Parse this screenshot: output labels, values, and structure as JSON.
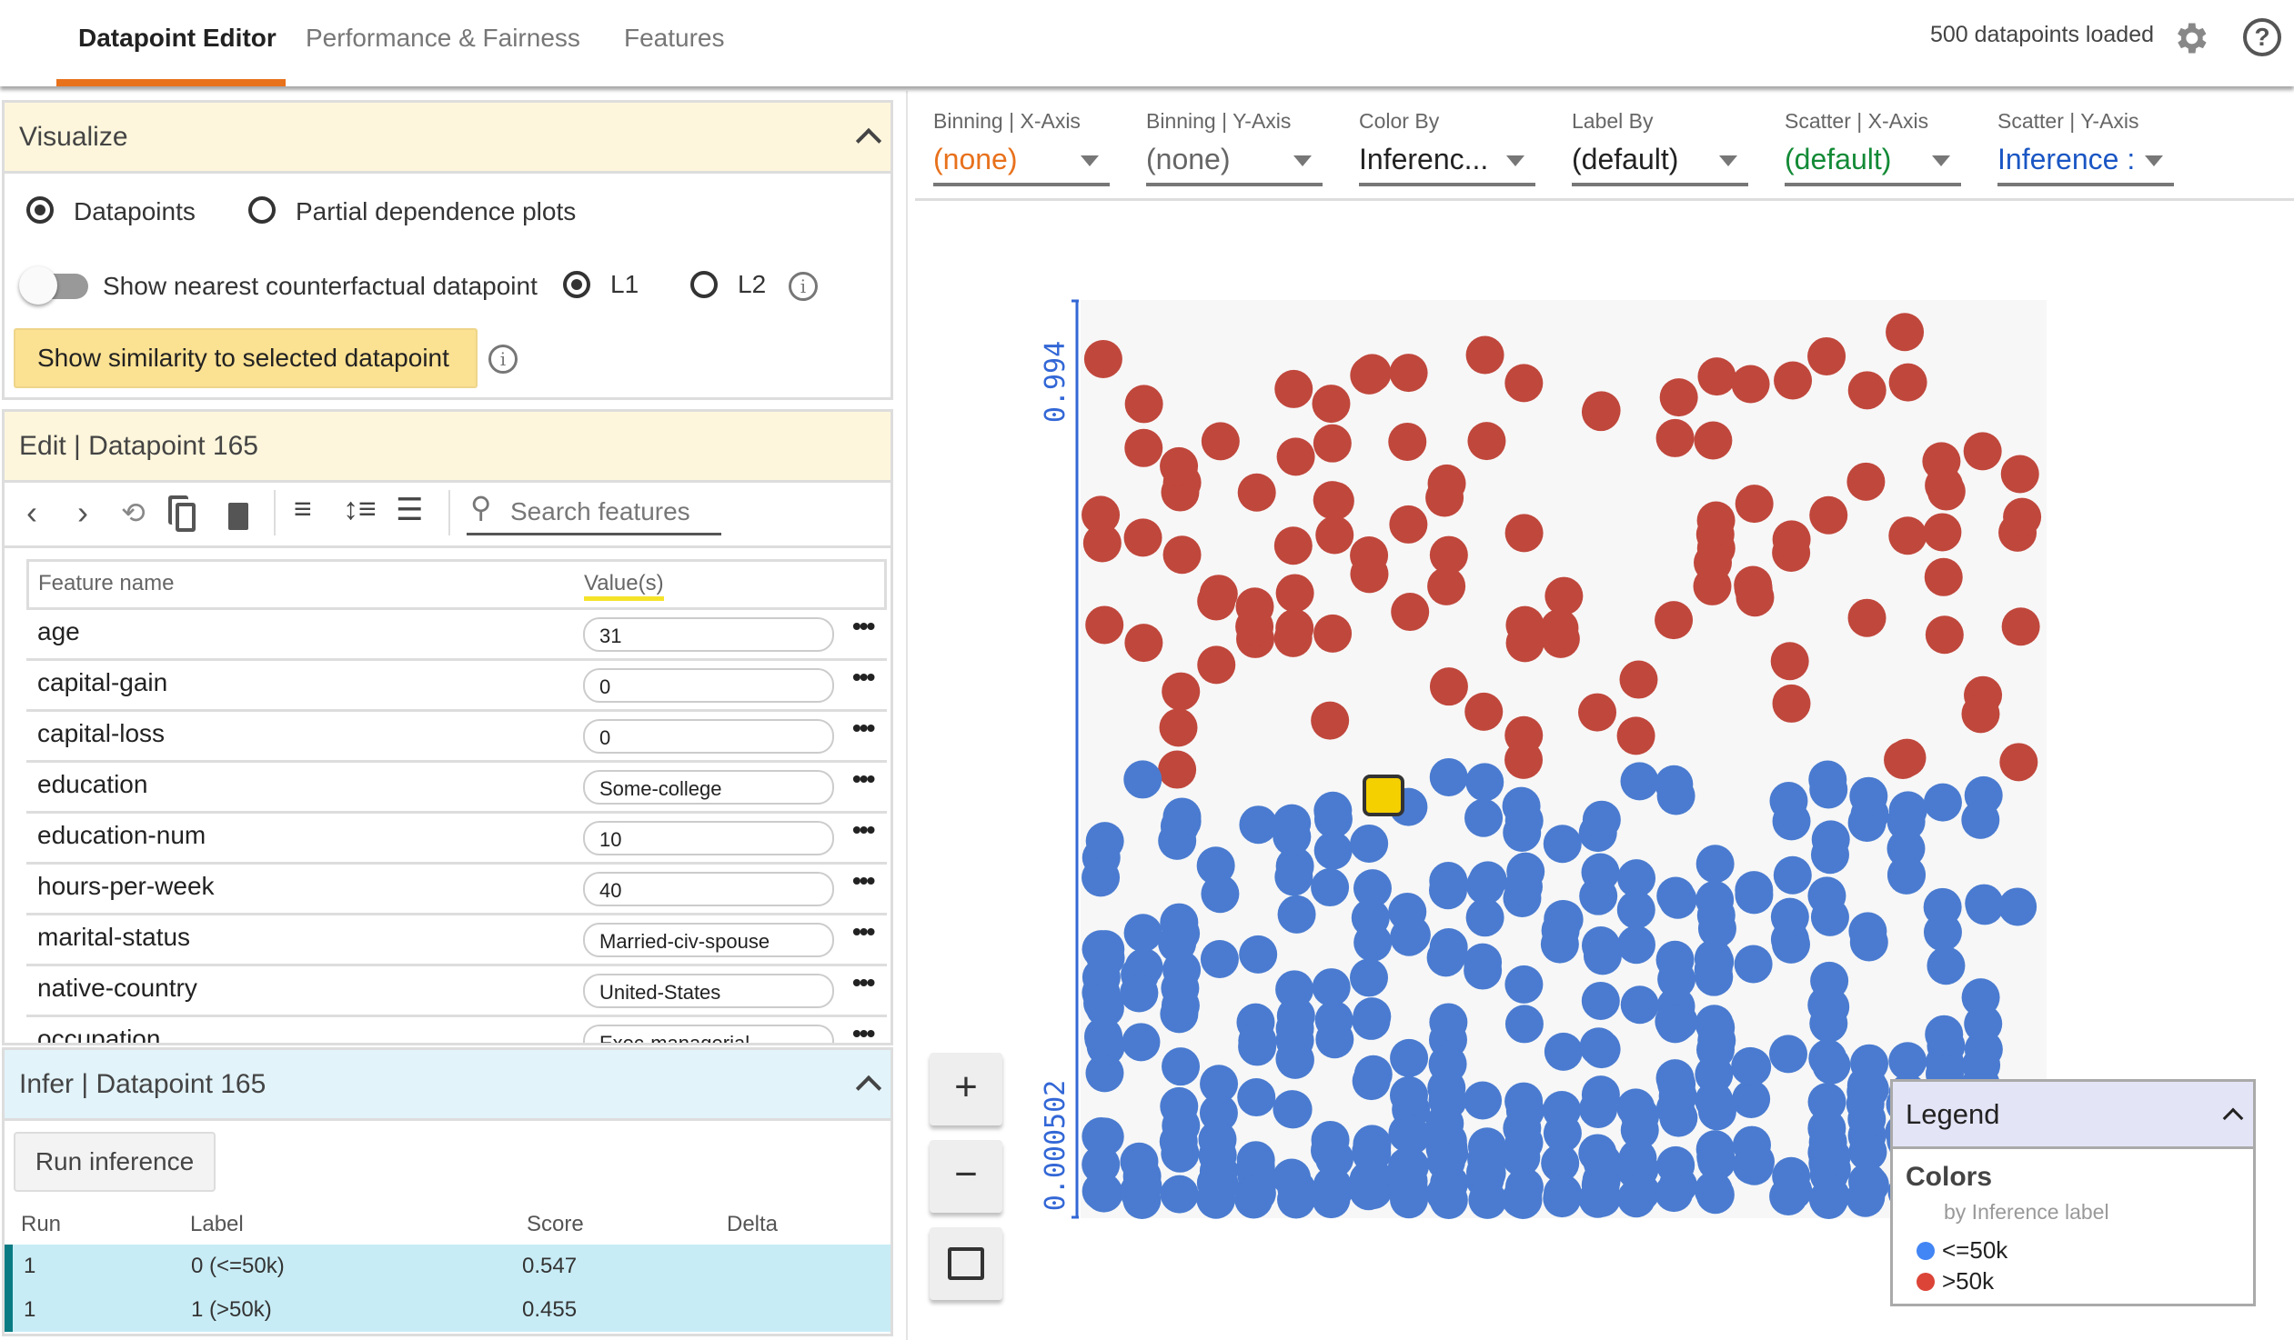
{
  "tabs": [
    {
      "label": "Datapoint Editor",
      "active": true
    },
    {
      "label": "Performance & Fairness"
    },
    {
      "label": "Features"
    }
  ],
  "header": {
    "status": "500 datapoints loaded",
    "settings_icon": "gear-icon",
    "help_icon": "help-icon",
    "help_glyph": "?"
  },
  "visualize": {
    "title": "Visualize",
    "mode_options": [
      "Datapoints",
      "Partial dependence plots"
    ],
    "selected_mode": "Datapoints",
    "counterfactual_label": "Show nearest counterfactual datapoint",
    "counterfactual_on": false,
    "distance_options": [
      "L1",
      "L2"
    ],
    "selected_distance": "L1",
    "similarity_button": "Show similarity to selected datapoint",
    "info_glyph": "i"
  },
  "edit": {
    "title": "Edit | Datapoint 165",
    "search_placeholder": "Search features",
    "col_name": "Feature name",
    "col_value": "Value(s)",
    "rows": [
      {
        "name": "age",
        "value": "31"
      },
      {
        "name": "capital-gain",
        "value": "0"
      },
      {
        "name": "capital-loss",
        "value": "0"
      },
      {
        "name": "education",
        "value": "Some-college"
      },
      {
        "name": "education-num",
        "value": "10"
      },
      {
        "name": "hours-per-week",
        "value": "40"
      },
      {
        "name": "marital-status",
        "value": "Married-civ-spouse"
      },
      {
        "name": "native-country",
        "value": "United-States"
      },
      {
        "name": "occupation",
        "value": "Exec-managerial"
      }
    ],
    "more_glyph": "•••"
  },
  "infer": {
    "title": "Infer | Datapoint 165",
    "run_button": "Run inference",
    "cols": [
      "Run",
      "Label",
      "Score",
      "Delta"
    ],
    "rows": [
      {
        "run": "1",
        "label": "0 (<=50k)",
        "score": "0.547",
        "delta": ""
      },
      {
        "run": "1",
        "label": "1 (>50k)",
        "score": "0.455",
        "delta": ""
      }
    ]
  },
  "controls": [
    {
      "label": "Binning | X-Axis",
      "value": "(none)",
      "color": "#e8711c"
    },
    {
      "label": "Binning | Y-Axis",
      "value": "(none)",
      "color": "#666666"
    },
    {
      "label": "Color By",
      "value": "Inferenc...",
      "color": "#222222"
    },
    {
      "label": "Label By",
      "value": "(default)",
      "color": "#222222"
    },
    {
      "label": "Scatter | X-Axis",
      "value": "(default)",
      "color": "#138a36"
    },
    {
      "label": "Scatter | Y-Axis",
      "value": "Inference :",
      "color": "#1a56c4"
    }
  ],
  "zoom": {
    "in": "+",
    "out": "−"
  },
  "chart_data": {
    "type": "scatter",
    "ylabel": "",
    "y_ticks": [
      "0.994",
      "0.000502"
    ],
    "ylim": [
      0.000502,
      0.994
    ],
    "y_axis_color": "#3367d6",
    "selected_datapoint": 165,
    "colors": {
      "<=50k": "#4a7bd0",
      "selected": "#f5d000",
      ">50k": "#c0473c"
    }
  },
  "legend": {
    "title": "Legend",
    "section": "Colors",
    "subtitle": "by Inference label",
    "items": [
      {
        "label": "<=50k",
        "color": "#4285f4"
      },
      {
        "label": ">50k",
        "color": "#db4437"
      }
    ]
  }
}
